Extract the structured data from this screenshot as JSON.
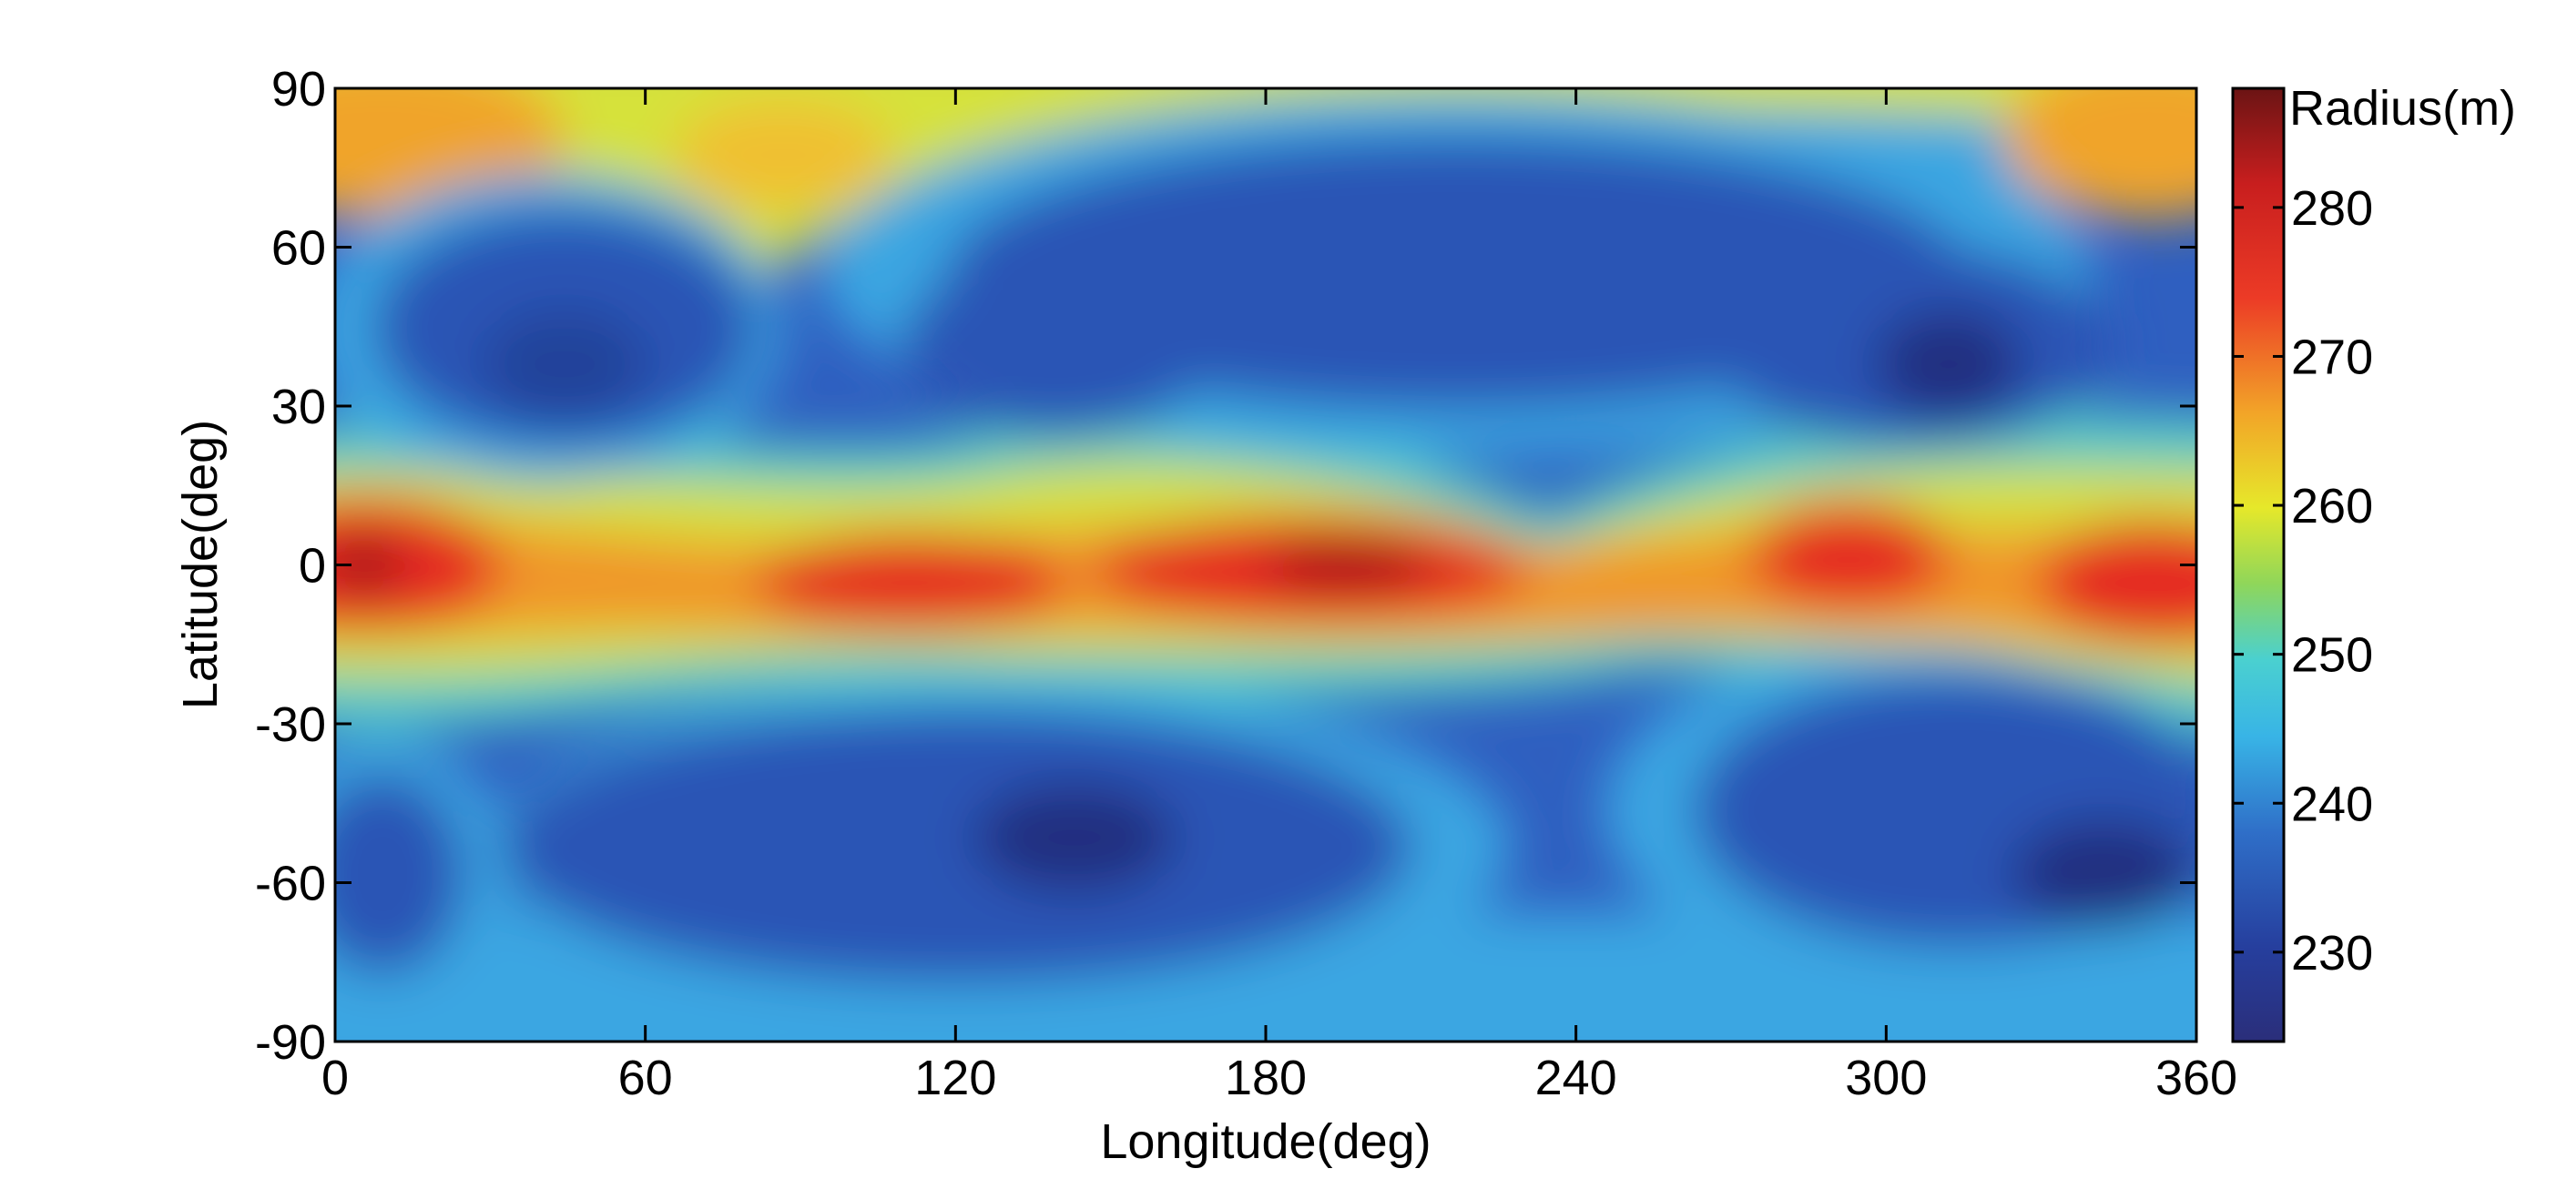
{
  "chart_data": {
    "type": "heatmap",
    "title": "",
    "xlabel": "Longitude(deg)",
    "ylabel": "Latitude(deg)",
    "xlim": [
      0,
      360
    ],
    "ylim": [
      -90,
      90
    ],
    "xticks": [
      0,
      60,
      120,
      180,
      240,
      300,
      360
    ],
    "yticks": [
      90,
      60,
      30,
      0,
      -30,
      -60,
      -90
    ],
    "grid": false,
    "colormap": "jet",
    "colorbar": {
      "label": "Radius(m)",
      "range": [
        224,
        288
      ],
      "ticks": [
        230,
        240,
        250,
        260,
        270,
        280
      ]
    },
    "description_values": {
      "equatorial_band_lat_0": [
        {
          "lon": 5,
          "value": 284
        },
        {
          "lon": 110,
          "value": 276
        },
        {
          "lon": 195,
          "value": 282
        },
        {
          "lon": 295,
          "value": 276
        },
        {
          "lon": 350,
          "value": 277
        }
      ],
      "mid_latitude_minimum_regions": [
        {
          "lon": 45,
          "lat": 40,
          "value": 229
        },
        {
          "lon": 315,
          "lat": 40,
          "value": 227
        },
        {
          "lon": 145,
          "lat": -55,
          "value": 227
        },
        {
          "lon": 345,
          "lat": -60,
          "value": 227
        }
      ],
      "polar_regions": [
        {
          "lon": 0,
          "lat": 80,
          "value": 262
        },
        {
          "lon": 360,
          "lat": 80,
          "value": 262
        },
        {
          "lon": 180,
          "lat": -85,
          "value": 240
        }
      ]
    },
    "colors": {
      "jet": [
        "#000080",
        "#0000ff",
        "#0080ff",
        "#00ffff",
        "#80ff80",
        "#ffff00",
        "#ff8000",
        "#ff0000",
        "#800000"
      ]
    }
  }
}
